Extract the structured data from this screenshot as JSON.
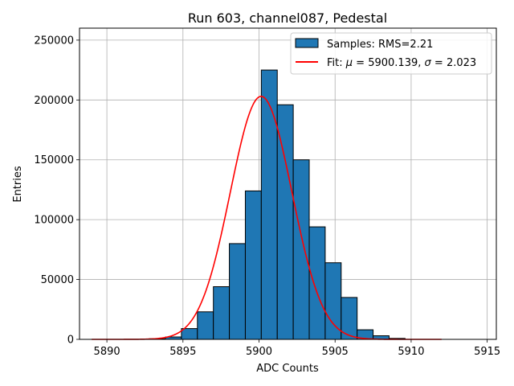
{
  "chart_data": {
    "type": "bar",
    "title": "Run 603, channel087, Pedestal",
    "xlabel": "ADC Counts",
    "ylabel": "Entries",
    "xlim": [
      5888.2,
      5915.6
    ],
    "ylim": [
      0,
      260000
    ],
    "xticks": [
      5890,
      5895,
      5900,
      5905,
      5910,
      5915
    ],
    "yticks": [
      0,
      50000,
      100000,
      150000,
      200000,
      250000
    ],
    "grid": true,
    "legend_position": "top-right",
    "histogram": {
      "name": "Samples: RMS=2.21",
      "color": "#1f77b4",
      "bin_width": 1.05,
      "bins": [
        {
          "start": 5892.8,
          "value": 500
        },
        {
          "start": 5893.85,
          "value": 2000
        },
        {
          "start": 5894.9,
          "value": 9000
        },
        {
          "start": 5895.95,
          "value": 23000
        },
        {
          "start": 5897.0,
          "value": 44000
        },
        {
          "start": 5898.05,
          "value": 80000
        },
        {
          "start": 5899.1,
          "value": 124000
        },
        {
          "start": 5900.15,
          "value": 225000
        },
        {
          "start": 5901.2,
          "value": 196000
        },
        {
          "start": 5902.25,
          "value": 150000
        },
        {
          "start": 5903.3,
          "value": 94000
        },
        {
          "start": 5904.35,
          "value": 64000
        },
        {
          "start": 5905.4,
          "value": 35000
        },
        {
          "start": 5906.45,
          "value": 8000
        },
        {
          "start": 5907.5,
          "value": 3000
        },
        {
          "start": 5908.55,
          "value": 800
        }
      ]
    },
    "fit": {
      "name_prefix": "Fit: ",
      "mu_symbol": "μ",
      "sigma_symbol": "σ",
      "mu": 5900.139,
      "sigma": 2.023,
      "mu_text": "5900.139",
      "sigma_text": "2.023",
      "amplitude": 203000,
      "x_range": [
        5889,
        5912
      ],
      "color": "#ff0000"
    }
  }
}
